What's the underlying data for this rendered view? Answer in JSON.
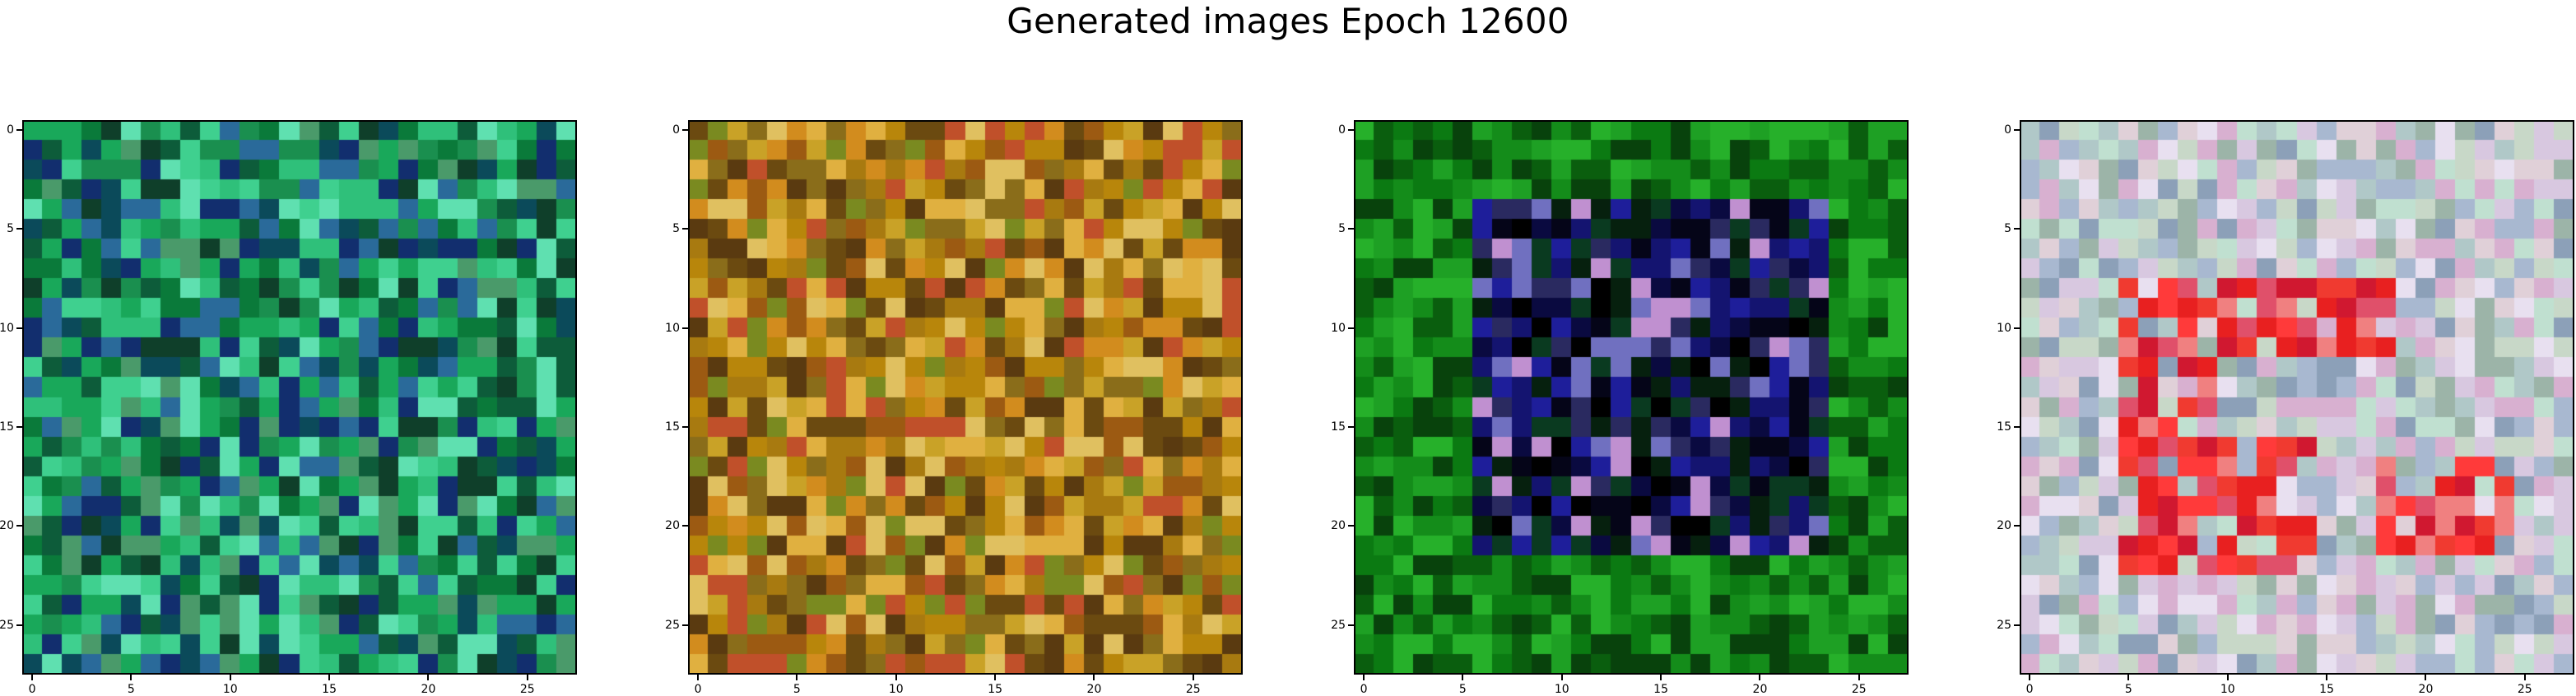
{
  "title": "Generated images Epoch 12600",
  "grid": 28,
  "x_ticks": [
    0,
    5,
    10,
    15,
    20,
    25
  ],
  "y_ticks": [
    0,
    5,
    10,
    15,
    20,
    25
  ],
  "panels": [
    {
      "id": 1,
      "description_style": "green-noise",
      "palette": [
        "#0a7a3a",
        "#19a85a",
        "#2fc07a",
        "#0d5c3a",
        "#1a8f4f",
        "#3fd08f",
        "#0b4a5a",
        "#122e6e",
        "#2a6a9a",
        "#5fe0b0",
        "#0f3f2a",
        "#4a9a6a"
      ]
    },
    {
      "id": 2,
      "description_style": "ochre-noise",
      "palette": [
        "#b8860b",
        "#c9a227",
        "#8a6d1a",
        "#d28c1e",
        "#9c5a12",
        "#6b4a10",
        "#e0b040",
        "#a87a10",
        "#c0502a",
        "#7a8a20",
        "#5a3a10",
        "#e0c060"
      ]
    },
    {
      "id": 3,
      "description_style": "green-frame-dark-center",
      "palette": [
        "#0b7a12",
        "#148c1a",
        "#0a5e0e",
        "#1ea024",
        "#08420c",
        "#26b02a"
      ],
      "inner_palette": [
        "#050518",
        "#0a0a40",
        "#141470",
        "#1e1e9a",
        "#06200e",
        "#000000",
        "#0a3a20",
        "#2a2a60",
        "#7070c0",
        "#c090d0"
      ]
    },
    {
      "id": 4,
      "description_style": "pastel-with-red",
      "palette": [
        "#c8d8c8",
        "#d8c8e0",
        "#b0c8c8",
        "#e0d0d8",
        "#a8b8d0",
        "#c0e0d0",
        "#d8b0d0",
        "#9cb4a8",
        "#e8e0f0",
        "#8ca0b8"
      ],
      "accent_palette": [
        "#e82020",
        "#f03a30",
        "#e0506a",
        "#ff3a3a",
        "#d01830",
        "#f08080"
      ]
    }
  ]
}
